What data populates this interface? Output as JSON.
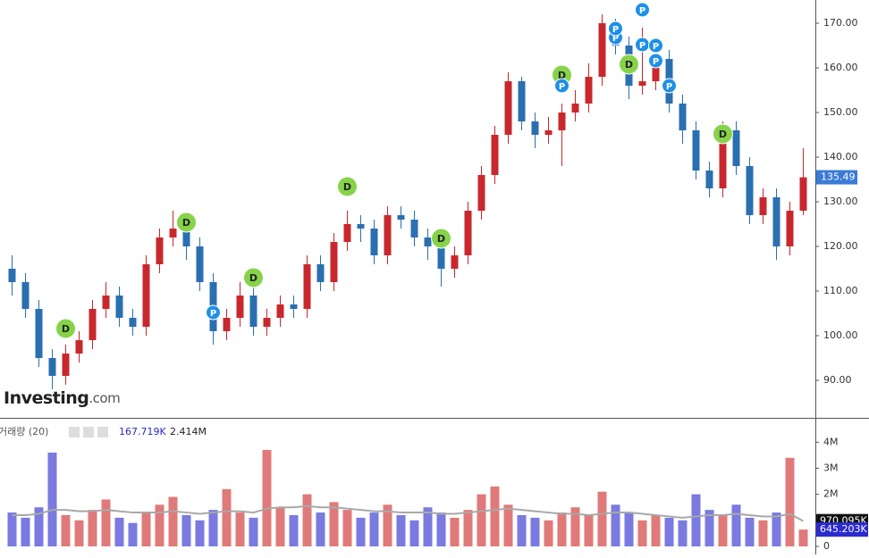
{
  "chart_data": [
    {
      "type": "candlestick",
      "up_color": "#c8282d",
      "down_color": "#2a6fb0",
      "open": [
        115,
        112,
        106,
        95,
        91,
        96,
        99,
        106,
        109,
        104,
        102,
        116,
        122,
        124,
        120,
        112,
        101,
        104,
        109,
        102,
        104,
        107,
        106,
        116,
        112,
        121,
        125,
        124,
        118,
        127,
        126,
        122,
        120,
        115,
        118,
        128,
        136,
        145,
        157,
        148,
        145,
        146,
        150,
        152,
        158,
        170,
        165,
        156,
        157,
        162,
        152,
        146,
        137,
        133,
        146,
        138,
        127,
        131,
        120,
        128
      ],
      "high": [
        118,
        114,
        108,
        97,
        98,
        101,
        108,
        112,
        111,
        106,
        118,
        124,
        128,
        126,
        122,
        114,
        106,
        112,
        111,
        106,
        109,
        109,
        118,
        118,
        123,
        128,
        127,
        126,
        129,
        129,
        128,
        124,
        122,
        120,
        130,
        138,
        147,
        159,
        158,
        150,
        149,
        152,
        155,
        161,
        172,
        171,
        167,
        169,
        164,
        164,
        154,
        148,
        139,
        148,
        148,
        140,
        133,
        133,
        130,
        142
      ],
      "low": [
        109,
        104,
        93,
        88,
        89,
        94,
        97,
        104,
        102,
        100,
        100,
        114,
        120,
        117,
        110,
        98,
        99,
        102,
        100,
        100,
        102,
        104,
        104,
        110,
        110,
        119,
        121,
        116,
        116,
        124,
        120,
        117,
        111,
        113,
        116,
        126,
        134,
        143,
        146,
        142,
        143,
        138,
        148,
        150,
        156,
        163,
        153,
        154,
        155,
        150,
        143,
        135,
        131,
        131,
        136,
        125,
        125,
        117,
        118,
        127
      ],
      "close": [
        112,
        106,
        95,
        91,
        96,
        99,
        106,
        109,
        104,
        102,
        116,
        122,
        124,
        120,
        112,
        101,
        104,
        109,
        102,
        104,
        107,
        106,
        116,
        112,
        121,
        125,
        124,
        118,
        127,
        126,
        122,
        120,
        115,
        118,
        128,
        136,
        145,
        157,
        148,
        145,
        146,
        150,
        152,
        158,
        170,
        165,
        156,
        157,
        162,
        152,
        146,
        137,
        133,
        146,
        138,
        127,
        131,
        120,
        128,
        135.49
      ],
      "last_color": "#3a7bd5",
      "ylim": [
        81.6,
        175.2
      ],
      "yticks": [
        {
          "value": 90,
          "label": "90.00"
        },
        {
          "value": 100,
          "label": "100.00"
        },
        {
          "value": 110,
          "label": "110.00"
        },
        {
          "value": 120,
          "label": "120.00"
        },
        {
          "value": 130,
          "label": "130.00"
        },
        {
          "value": 140,
          "label": "140.00"
        },
        {
          "value": 150,
          "label": "150.00"
        },
        {
          "value": 160,
          "label": "160.00"
        },
        {
          "value": 170,
          "label": "170.00"
        }
      ],
      "events": [
        {
          "label": "D",
          "candle": 4,
          "y": 101.6,
          "color": "#86d34a"
        },
        {
          "label": "D",
          "candle": 13,
          "y": 125.4,
          "color": "#86d34a"
        },
        {
          "label": "D",
          "candle": 18,
          "y": 113,
          "color": "#86d34a"
        },
        {
          "label": "D",
          "candle": 25,
          "y": 133.4,
          "color": "#86d34a"
        },
        {
          "label": "D",
          "candle": 32,
          "y": 121.8,
          "color": "#86d34a"
        },
        {
          "label": "D",
          "candle": 41,
          "y": 158.4,
          "color": "#86d34a"
        },
        {
          "label": "D",
          "candle": 46,
          "y": 160.8,
          "color": "#86d34a"
        },
        {
          "label": "D",
          "candle": 53,
          "y": 145.2,
          "color": "#86d34a"
        },
        {
          "label": "P",
          "candle": 15,
          "y": 105.2,
          "color": "#1e90e6"
        },
        {
          "label": "P",
          "candle": 41,
          "y": 156,
          "color": "#1e90e6"
        },
        {
          "label": "P",
          "candle": 45,
          "y": 166.8,
          "color": "#1e90e6"
        },
        {
          "label": "P",
          "candle": 45,
          "y": 168.8,
          "color": "#1e90e6"
        },
        {
          "label": "P",
          "candle": 47,
          "y": 173,
          "color": "#1e90e6"
        },
        {
          "label": "P",
          "candle": 47,
          "y": 165.2,
          "color": "#1e90e6"
        },
        {
          "label": "P",
          "candle": 48,
          "y": 165,
          "color": "#1e90e6"
        },
        {
          "label": "P",
          "candle": 48,
          "y": 161.6,
          "color": "#1e90e6"
        },
        {
          "label": "P",
          "candle": 49,
          "y": 156,
          "color": "#1e90e6"
        }
      ]
    },
    {
      "type": "bar",
      "title": "거래량 (20)",
      "up_color": "#e07a7a",
      "down_color": "#7a7ae0",
      "values": [
        1.3,
        1.1,
        1.5,
        3.6,
        1.2,
        1.0,
        1.4,
        1.8,
        1.1,
        0.9,
        1.3,
        1.6,
        1.9,
        1.2,
        1.0,
        1.4,
        2.2,
        1.3,
        1.1,
        3.7,
        1.5,
        1.2,
        2.0,
        1.3,
        1.7,
        1.4,
        1.1,
        1.3,
        1.6,
        1.2,
        1.0,
        1.5,
        1.3,
        1.1,
        1.4,
        2.0,
        2.3,
        1.6,
        1.2,
        1.1,
        1.0,
        1.3,
        1.5,
        1.2,
        2.1,
        1.6,
        1.3,
        1.0,
        1.2,
        1.1,
        1.0,
        2.0,
        1.4,
        1.2,
        1.6,
        1.1,
        1.0,
        1.3,
        3.4,
        0.645203
      ],
      "ma": {
        "color": "#a8a8a8",
        "values": [
          1.2,
          1.2,
          1.25,
          1.4,
          1.4,
          1.35,
          1.35,
          1.4,
          1.35,
          1.3,
          1.3,
          1.3,
          1.35,
          1.3,
          1.25,
          1.3,
          1.35,
          1.35,
          1.3,
          1.45,
          1.5,
          1.5,
          1.55,
          1.5,
          1.5,
          1.45,
          1.4,
          1.35,
          1.35,
          1.3,
          1.3,
          1.3,
          1.25,
          1.25,
          1.3,
          1.35,
          1.4,
          1.45,
          1.4,
          1.35,
          1.3,
          1.25,
          1.25,
          1.2,
          1.25,
          1.3,
          1.3,
          1.25,
          1.2,
          1.15,
          1.1,
          1.15,
          1.2,
          1.2,
          1.25,
          1.2,
          1.15,
          1.15,
          1.25,
          0.970095
        ]
      },
      "legend_values": [
        {
          "value": 0.167719,
          "label": "167.719K",
          "color": "#2828c8"
        },
        {
          "value": 2.414,
          "label": "2.414M",
          "color": "#222222"
        }
      ],
      "last_labels": [
        {
          "value": 0.970095,
          "label": "970.095K",
          "color": "#111111"
        },
        {
          "value": 0.645203,
          "label": "645.203K",
          "color": "#2a2ad0"
        }
      ],
      "ylim": [
        0,
        4.9
      ],
      "yticks": [
        0,
        {
          "value": 2,
          "label": "2M"
        },
        {
          "value": 3,
          "label": "3M"
        },
        {
          "value": 4,
          "label": "4M"
        }
      ]
    }
  ],
  "logo": {
    "brand": "Investing",
    "suffix": ".com"
  }
}
